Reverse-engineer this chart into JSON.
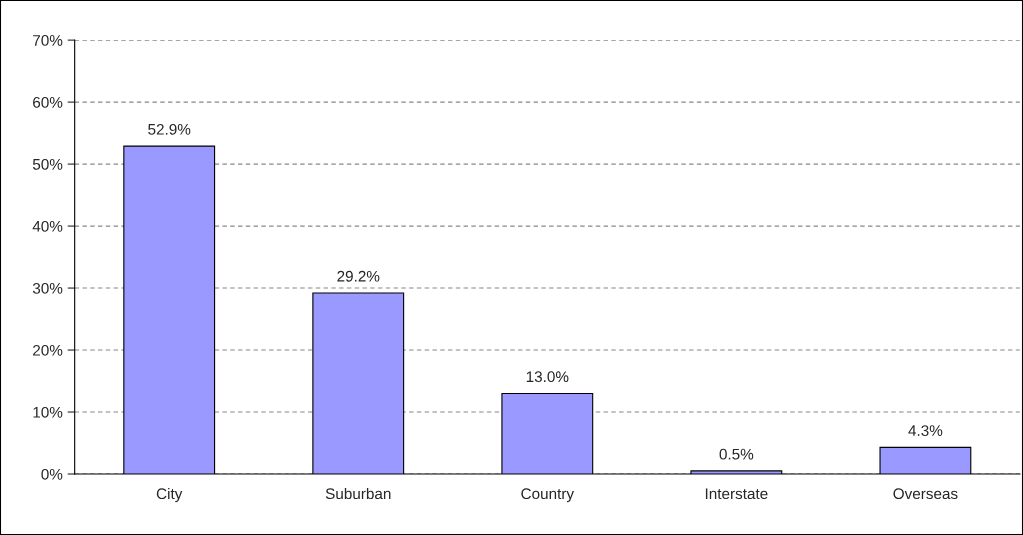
{
  "chart_data": {
    "type": "bar",
    "categories": [
      "City",
      "Suburban",
      "Country",
      "Interstate",
      "Overseas"
    ],
    "values": [
      52.9,
      29.2,
      13.0,
      0.5,
      4.3
    ],
    "value_labels": [
      "52.9%",
      "29.2%",
      "13.0%",
      "0.5%",
      "4.3%"
    ],
    "color": "#9999ff",
    "ylim": [
      0,
      70
    ],
    "yticks": [
      {
        "value": 0,
        "label": "0%"
      },
      {
        "value": 10,
        "label": "10%"
      },
      {
        "value": 20,
        "label": "20%"
      },
      {
        "value": 30,
        "label": "30%"
      },
      {
        "value": 40,
        "label": "40%"
      },
      {
        "value": 50,
        "label": "50%"
      },
      {
        "value": 60,
        "label": "60%"
      },
      {
        "value": 70,
        "label": "70%"
      }
    ],
    "grid": "y",
    "line_style": "dashed",
    "legend": false
  }
}
